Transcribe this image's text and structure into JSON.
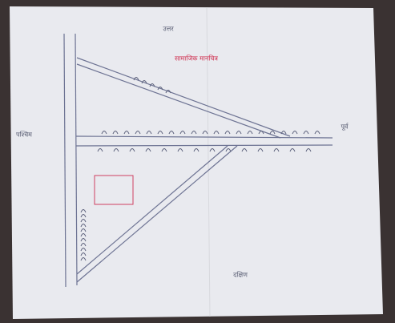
{
  "map": {
    "title": "सामाजिक मानचित्र",
    "directions": {
      "north": "उत्तर",
      "west": "पश्चिम",
      "east": "पूर्व",
      "south": "दक्षिण"
    }
  }
}
